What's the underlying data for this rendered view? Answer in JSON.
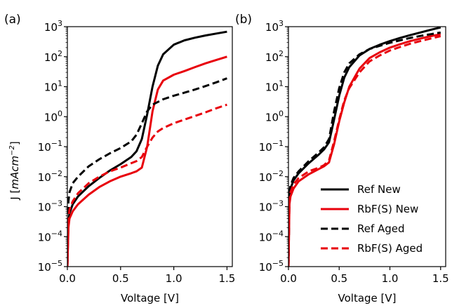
{
  "figure": {
    "ylabel_prefix": "J [",
    "ylabel_unit": "mAcm",
    "ylabel_exp": "−2",
    "ylabel_suffix": "]"
  },
  "chart_data": [
    {
      "type": "line",
      "panel_label": "(a)",
      "xlabel": "Voltage [V]",
      "ylabel": "J [mAcm^-2]",
      "xlim": [
        0,
        1.55
      ],
      "ylim": [
        1e-05,
        1000
      ],
      "yscale": "log",
      "xticks": [
        "0.0",
        "0.5",
        "1.0",
        "1.5"
      ],
      "yticks": [
        -5,
        -4,
        -3,
        -2,
        -1,
        0,
        1,
        2,
        3
      ],
      "grid": false,
      "series": [
        {
          "name": "Ref New",
          "color": "#000000",
          "dash": "solid",
          "x": [
            0.01,
            0.02,
            0.05,
            0.1,
            0.2,
            0.3,
            0.4,
            0.5,
            0.6,
            0.65,
            0.7,
            0.75,
            0.8,
            0.85,
            0.9,
            1.0,
            1.1,
            1.2,
            1.3,
            1.4,
            1.5
          ],
          "y": [
            0.0003,
            0.0006,
            0.0012,
            0.0022,
            0.0048,
            0.009,
            0.016,
            0.026,
            0.045,
            0.07,
            0.18,
            1.2,
            10,
            50,
            120,
            250,
            350,
            430,
            510,
            590,
            680
          ]
        },
        {
          "name": "RbF(S) New",
          "color": "#e8000b",
          "dash": "solid",
          "x": [
            0.01,
            0.02,
            0.05,
            0.1,
            0.2,
            0.3,
            0.4,
            0.5,
            0.6,
            0.65,
            0.7,
            0.75,
            0.8,
            0.85,
            0.9,
            1.0,
            1.1,
            1.2,
            1.3,
            1.4,
            1.5
          ],
          "y": [
            0.0002,
            0.0004,
            0.0007,
            0.0012,
            0.0025,
            0.0045,
            0.007,
            0.01,
            0.013,
            0.015,
            0.02,
            0.1,
            1.5,
            8,
            16,
            25,
            33,
            45,
            60,
            78,
            100
          ]
        },
        {
          "name": "Ref Aged",
          "color": "#000000",
          "dash": "dashed",
          "x": [
            0.01,
            0.02,
            0.05,
            0.1,
            0.2,
            0.3,
            0.4,
            0.5,
            0.6,
            0.65,
            0.7,
            0.75,
            0.8,
            0.9,
            1.0,
            1.1,
            1.2,
            1.3,
            1.4,
            1.5
          ],
          "y": [
            0.0015,
            0.003,
            0.006,
            0.01,
            0.022,
            0.038,
            0.06,
            0.09,
            0.15,
            0.25,
            0.6,
            1.5,
            2.5,
            3.8,
            5,
            6.3,
            8,
            10.5,
            14,
            19
          ]
        },
        {
          "name": "RbF(S) Aged",
          "color": "#e8000b",
          "dash": "dashed",
          "x": [
            0.01,
            0.02,
            0.05,
            0.1,
            0.2,
            0.3,
            0.4,
            0.5,
            0.6,
            0.65,
            0.7,
            0.75,
            0.8,
            0.85,
            0.9,
            1.0,
            1.1,
            1.2,
            1.3,
            1.4,
            1.5
          ],
          "y": [
            0.0004,
            0.0008,
            0.0015,
            0.0028,
            0.006,
            0.01,
            0.015,
            0.02,
            0.028,
            0.033,
            0.045,
            0.1,
            0.2,
            0.32,
            0.42,
            0.6,
            0.8,
            1.05,
            1.4,
            1.9,
            2.5
          ]
        }
      ]
    },
    {
      "type": "line",
      "panel_label": "(b)",
      "xlabel": "Voltage [V]",
      "ylabel": "",
      "xlim": [
        0,
        1.55
      ],
      "ylim": [
        1e-05,
        1000
      ],
      "yscale": "log",
      "xticks": [
        "0.0",
        "0.5",
        "1.0",
        "1.5"
      ],
      "yticks": [
        -5,
        -4,
        -3,
        -2,
        -1,
        0,
        1,
        2,
        3
      ],
      "grid": false,
      "legend": "lower-right",
      "series": [
        {
          "name": "Ref New",
          "color": "#000000",
          "dash": "solid",
          "x": [
            0.01,
            0.02,
            0.05,
            0.1,
            0.2,
            0.3,
            0.35,
            0.4,
            0.45,
            0.5,
            0.55,
            0.6,
            0.7,
            0.8,
            0.9,
            1.0,
            1.1,
            1.2,
            1.3,
            1.4,
            1.5
          ],
          "y": [
            0.0025,
            0.004,
            0.0075,
            0.013,
            0.028,
            0.055,
            0.08,
            0.14,
            0.8,
            5,
            20,
            45,
            110,
            180,
            250,
            330,
            420,
            520,
            640,
            780,
            950
          ]
        },
        {
          "name": "RbF(S) New",
          "color": "#e8000b",
          "dash": "solid",
          "x": [
            0.01,
            0.02,
            0.05,
            0.1,
            0.2,
            0.3,
            0.35,
            0.4,
            0.45,
            0.5,
            0.55,
            0.6,
            0.7,
            0.8,
            0.9,
            1.0,
            1.1,
            1.2,
            1.3,
            1.4,
            1.5
          ],
          "y": [
            0.0012,
            0.0022,
            0.004,
            0.007,
            0.012,
            0.018,
            0.022,
            0.03,
            0.12,
            0.7,
            3,
            10,
            40,
            90,
            140,
            200,
            260,
            330,
            400,
            480,
            560
          ]
        },
        {
          "name": "Ref Aged",
          "color": "#000000",
          "dash": "dashed",
          "x": [
            0.01,
            0.02,
            0.05,
            0.1,
            0.2,
            0.3,
            0.35,
            0.4,
            0.45,
            0.5,
            0.55,
            0.6,
            0.7,
            0.8,
            0.9,
            1.0,
            1.1,
            1.2,
            1.3,
            1.4,
            1.5
          ],
          "y": [
            0.003,
            0.005,
            0.009,
            0.015,
            0.033,
            0.065,
            0.095,
            0.18,
            1.5,
            9,
            30,
            60,
            120,
            180,
            230,
            290,
            350,
            420,
            490,
            560,
            640
          ]
        },
        {
          "name": "RbF(S) Aged",
          "color": "#e8000b",
          "dash": "dashed",
          "x": [
            0.01,
            0.02,
            0.05,
            0.1,
            0.2,
            0.3,
            0.35,
            0.4,
            0.45,
            0.5,
            0.55,
            0.6,
            0.7,
            0.8,
            0.9,
            1.0,
            1.1,
            1.2,
            1.3,
            1.4,
            1.5
          ],
          "y": [
            0.0018,
            0.003,
            0.0055,
            0.009,
            0.015,
            0.02,
            0.024,
            0.035,
            0.15,
            0.8,
            3.5,
            9,
            30,
            70,
            110,
            160,
            210,
            270,
            330,
            400,
            480
          ]
        }
      ]
    }
  ]
}
